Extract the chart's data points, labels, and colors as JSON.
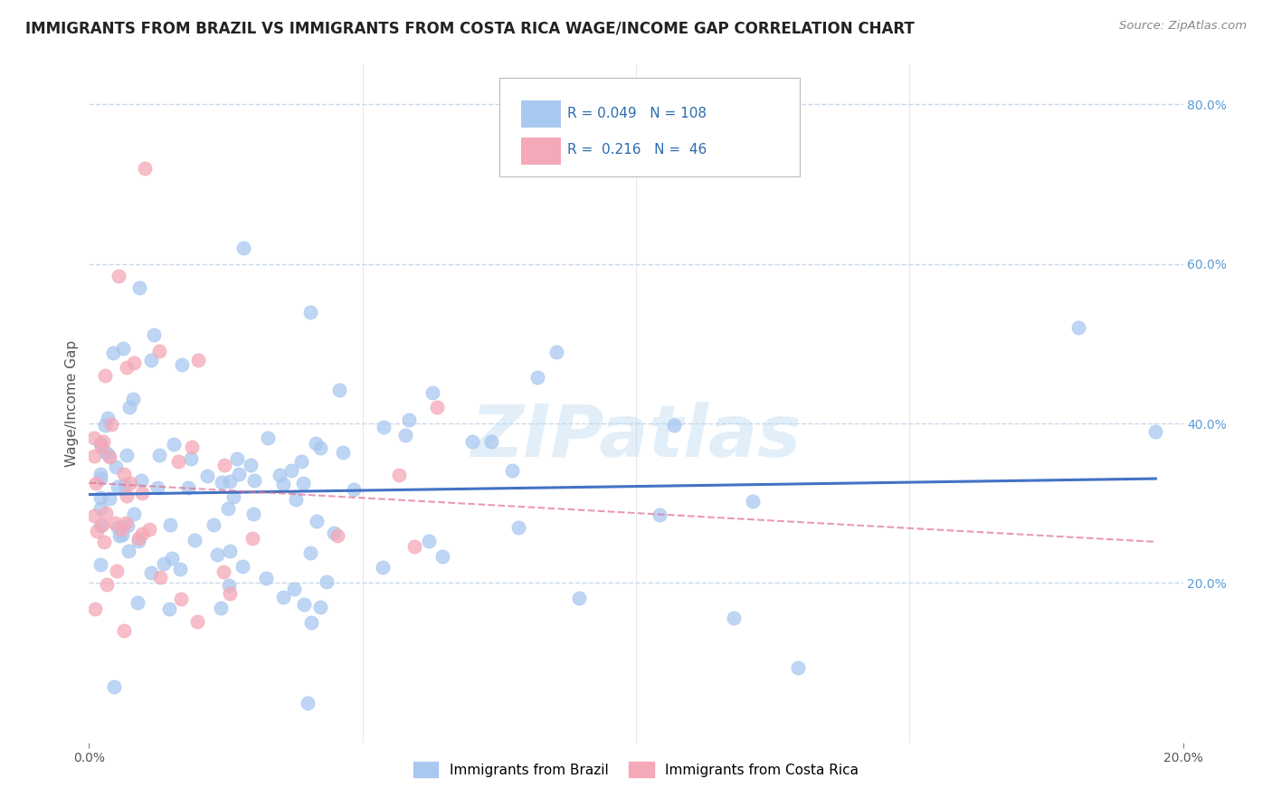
{
  "title": "IMMIGRANTS FROM BRAZIL VS IMMIGRANTS FROM COSTA RICA WAGE/INCOME GAP CORRELATION CHART",
  "source_text": "Source: ZipAtlas.com",
  "ylabel": "Wage/Income Gap",
  "xlim": [
    0.0,
    0.2
  ],
  "ylim": [
    0.0,
    0.85
  ],
  "y_tick_labels_right": [
    "20.0%",
    "40.0%",
    "60.0%",
    "80.0%"
  ],
  "y_tick_positions_right": [
    0.2,
    0.4,
    0.6,
    0.8
  ],
  "brazil_color": "#a8c8f0",
  "costa_rica_color": "#f5a8b8",
  "brazil_line_color": "#4472c4",
  "costa_rica_line_color": "#e07090",
  "brazil_R": 0.049,
  "brazil_N": 108,
  "costa_rica_R": 0.216,
  "costa_rica_N": 46,
  "watermark": "ZIPatlas",
  "legend_R_color": "#2b6cb0",
  "background_color": "#ffffff",
  "grid_color": "#c8d8e8"
}
